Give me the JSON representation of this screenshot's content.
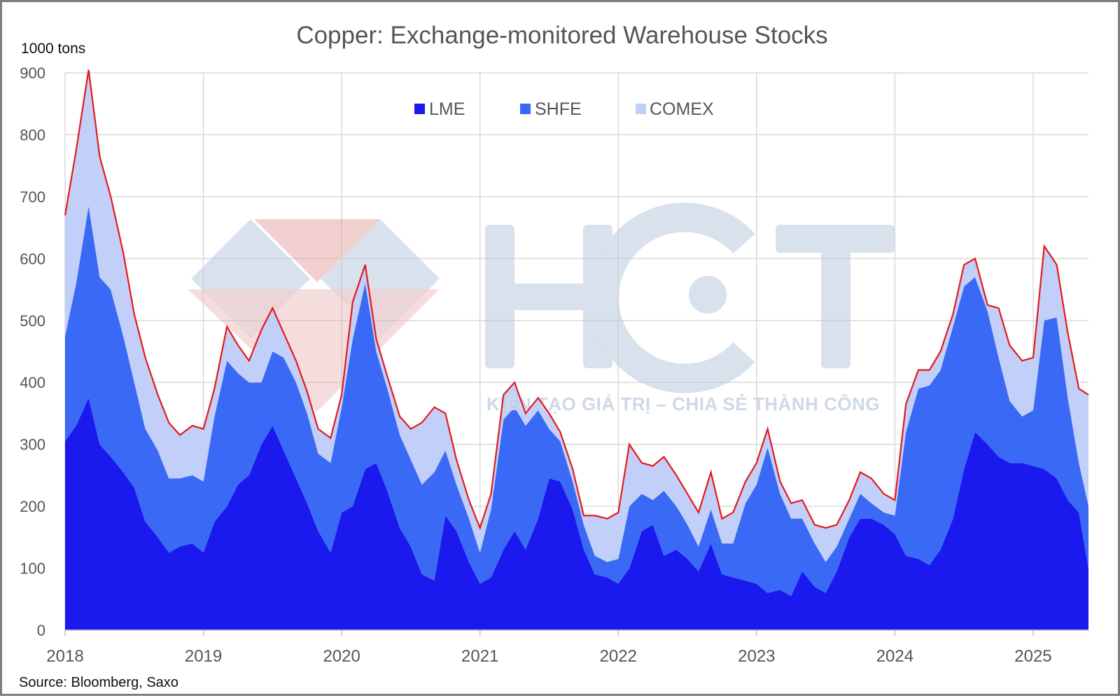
{
  "chart_data": {
    "type": "area",
    "stacked": true,
    "title": "Copper: Exchange-monitored Warehouse Stocks",
    "ylabel": "1000 tons",
    "xlabel": "",
    "ylim": [
      0,
      900
    ],
    "xlim": [
      2018,
      2025.4
    ],
    "yticks": [
      "0",
      "100",
      "200",
      "300",
      "400",
      "500",
      "600",
      "700",
      "800",
      "900"
    ],
    "xticks": [
      "2018",
      "2019",
      "2020",
      "2021",
      "2022",
      "2023",
      "2024",
      "2025"
    ],
    "grid": true,
    "legend_position": "top-center",
    "x": [
      2018.0,
      2018.08,
      2018.17,
      2018.25,
      2018.33,
      2018.42,
      2018.5,
      2018.58,
      2018.67,
      2018.75,
      2018.83,
      2018.92,
      2019.0,
      2019.08,
      2019.17,
      2019.25,
      2019.33,
      2019.42,
      2019.5,
      2019.58,
      2019.67,
      2019.75,
      2019.83,
      2019.92,
      2020.0,
      2020.08,
      2020.17,
      2020.25,
      2020.33,
      2020.42,
      2020.5,
      2020.58,
      2020.67,
      2020.75,
      2020.83,
      2020.92,
      2021.0,
      2021.08,
      2021.17,
      2021.25,
      2021.33,
      2021.42,
      2021.5,
      2021.58,
      2021.67,
      2021.75,
      2021.83,
      2021.92,
      2022.0,
      2022.08,
      2022.17,
      2022.25,
      2022.33,
      2022.42,
      2022.5,
      2022.58,
      2022.67,
      2022.75,
      2022.83,
      2022.92,
      2023.0,
      2023.08,
      2023.17,
      2023.25,
      2023.33,
      2023.42,
      2023.5,
      2023.58,
      2023.67,
      2023.75,
      2023.83,
      2023.92,
      2024.0,
      2024.08,
      2024.17,
      2024.25,
      2024.33,
      2024.42,
      2024.5,
      2024.58,
      2024.67,
      2024.75,
      2024.83,
      2024.92,
      2025.0,
      2025.08,
      2025.17,
      2025.25,
      2025.33,
      2025.4
    ],
    "series": [
      {
        "name": "LME",
        "color": "#1a1aee",
        "values": [
          305,
          330,
          375,
          300,
          280,
          255,
          230,
          175,
          150,
          125,
          135,
          140,
          125,
          175,
          200,
          235,
          250,
          300,
          330,
          290,
          245,
          205,
          160,
          125,
          190,
          200,
          260,
          270,
          225,
          165,
          135,
          90,
          80,
          185,
          160,
          110,
          75,
          85,
          130,
          160,
          130,
          180,
          245,
          240,
          195,
          130,
          90,
          85,
          75,
          100,
          160,
          170,
          120,
          130,
          115,
          95,
          140,
          90,
          85,
          80,
          75,
          60,
          65,
          55,
          95,
          70,
          60,
          95,
          150,
          180,
          180,
          170,
          155,
          120,
          115,
          105,
          130,
          180,
          260,
          320,
          300,
          280,
          270,
          270,
          265,
          260,
          245,
          210,
          190,
          100
        ]
      },
      {
        "name": "SHFE",
        "color": "#3a6af5",
        "values": [
          170,
          230,
          310,
          270,
          270,
          220,
          170,
          150,
          140,
          120,
          110,
          110,
          115,
          170,
          235,
          180,
          150,
          100,
          120,
          150,
          155,
          145,
          125,
          145,
          170,
          270,
          300,
          180,
          165,
          150,
          140,
          145,
          175,
          105,
          75,
          70,
          50,
          110,
          210,
          200,
          200,
          175,
          80,
          65,
          45,
          40,
          30,
          25,
          40,
          100,
          60,
          40,
          105,
          70,
          55,
          40,
          55,
          50,
          55,
          125,
          160,
          235,
          155,
          125,
          85,
          70,
          50,
          40,
          30,
          40,
          25,
          20,
          30,
          200,
          275,
          290,
          290,
          310,
          295,
          250,
          215,
          160,
          100,
          75,
          90,
          240,
          260,
          165,
          80,
          100
        ]
      },
      {
        "name": "COMEX",
        "color": "#c2cff8",
        "values": [
          195,
          215,
          220,
          195,
          150,
          135,
          110,
          115,
          90,
          90,
          70,
          80,
          85,
          45,
          55,
          45,
          35,
          85,
          70,
          40,
          35,
          35,
          40,
          40,
          20,
          60,
          30,
          20,
          20,
          30,
          50,
          100,
          105,
          60,
          40,
          30,
          40,
          25,
          40,
          40,
          20,
          20,
          25,
          15,
          20,
          15,
          65,
          70,
          75,
          100,
          50,
          55,
          55,
          50,
          50,
          55,
          60,
          40,
          50,
          35,
          35,
          30,
          20,
          25,
          30,
          30,
          55,
          35,
          30,
          35,
          40,
          30,
          25,
          45,
          30,
          25,
          30,
          20,
          35,
          30,
          10,
          80,
          90,
          90,
          85,
          120,
          85,
          105,
          120,
          180
        ]
      }
    ]
  },
  "axis": {
    "unit_label": "1000 tons"
  },
  "legend": [
    {
      "label": "LME",
      "color": "#1a1aee"
    },
    {
      "label": "SHFE",
      "color": "#3a6af5"
    },
    {
      "label": "COMEX",
      "color": "#c2cff8"
    }
  ],
  "total_line_color": "#e31a1c",
  "watermark": {
    "logo_text": "HCT",
    "tagline": "KIẾN TẠO GIÁ TRỊ – CHIA SẺ THÀNH CÔNG"
  },
  "source": "Source: Bloomberg, Saxo"
}
